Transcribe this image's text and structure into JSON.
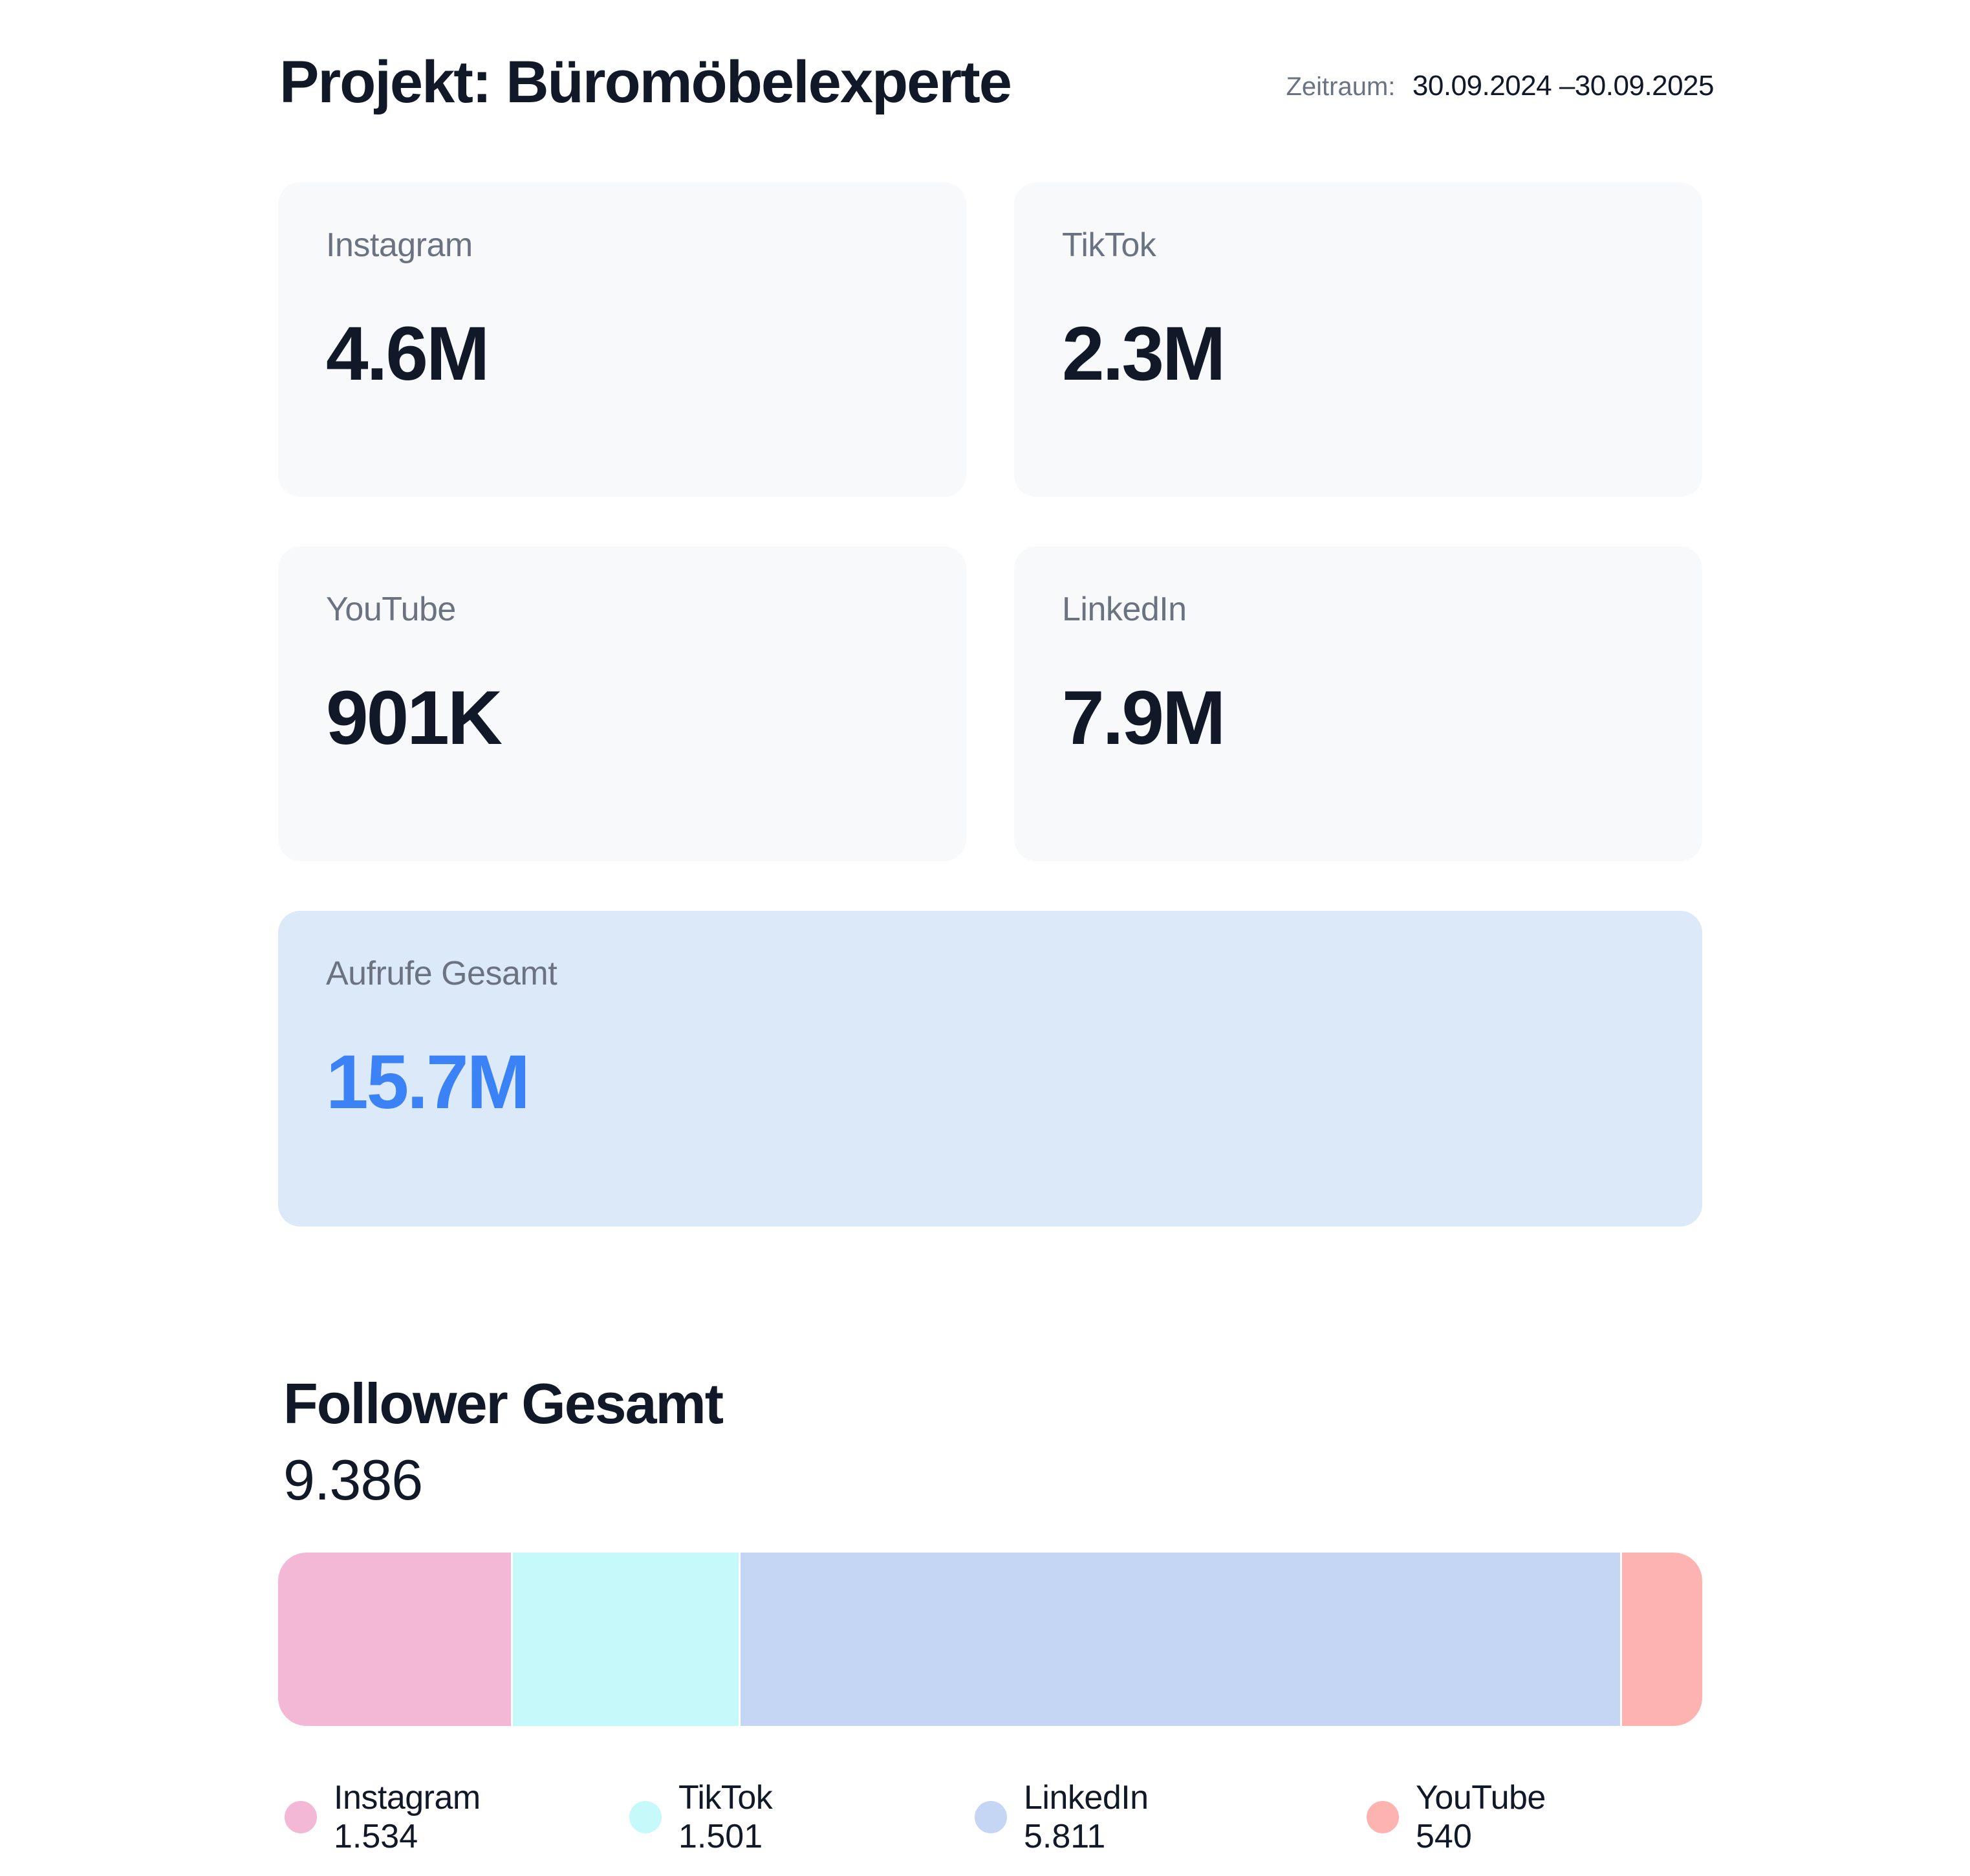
{
  "header": {
    "title": "Projekt: Büromöbelexperte",
    "period_label": "Zeitraum:",
    "period_value": "30.09.2024 –30.09.2025"
  },
  "views": {
    "instagram": {
      "label": "Instagram",
      "value": "4.6M"
    },
    "tiktok": {
      "label": "TikTok",
      "value": "2.3M"
    },
    "youtube": {
      "label": "YouTube",
      "value": "901K"
    },
    "linkedin": {
      "label": "LinkedIn",
      "value": "7.9M"
    },
    "total": {
      "label": "Aufrufe Gesamt",
      "value": "15.7M"
    }
  },
  "followers": {
    "title": "Follower Gesamt",
    "total": "9.386"
  },
  "colors": {
    "instagram": "#f2b8d6",
    "tiktok": "#c6f9fa",
    "linkedin": "#c5d6f5",
    "youtube": "#fdb4b1",
    "accent": "#3b82f6",
    "total_card_bg": "#dce9f9"
  },
  "chart_data": {
    "type": "bar",
    "stacked": true,
    "orientation": "horizontal",
    "categories": [
      "Instagram",
      "TikTok",
      "LinkedIn",
      "YouTube"
    ],
    "values": [
      1534,
      1501,
      5811,
      540
    ],
    "value_labels": [
      "1.534",
      "1.501",
      "5.811",
      "540"
    ],
    "colors": [
      "#f2b8d6",
      "#c6f9fa",
      "#c5d6f5",
      "#fdb4b1"
    ],
    "legend": "bottom"
  }
}
